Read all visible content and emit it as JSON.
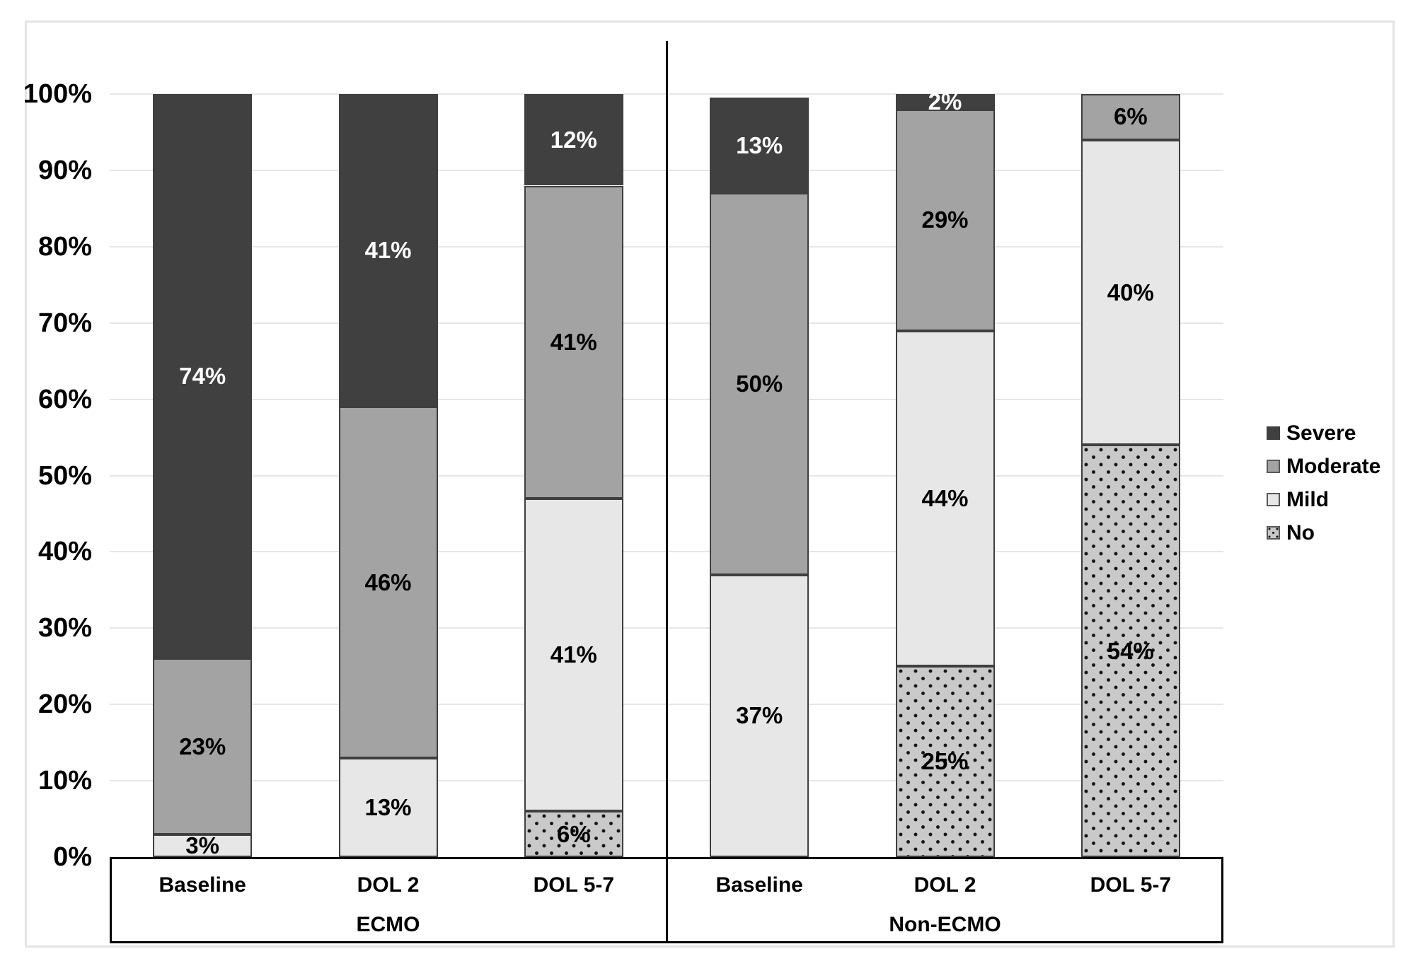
{
  "chart_data": {
    "type": "bar",
    "stacked": true,
    "stacked_kind": "percent",
    "title": "",
    "xlabel": "",
    "ylabel": "",
    "ylim": [
      0,
      100
    ],
    "grid": "horizontal",
    "legend_position": "right",
    "y_ticks": [
      "0%",
      "10%",
      "20%",
      "30%",
      "40%",
      "50%",
      "60%",
      "70%",
      "80%",
      "90%",
      "100%"
    ],
    "categories": [
      "Baseline",
      "DOL 2",
      "DOL 5-7",
      "Baseline",
      "DOL 2",
      "DOL 5-7"
    ],
    "groups": [
      {
        "label": "ECMO",
        "from": 0,
        "to": 2
      },
      {
        "label": "Non-ECMO",
        "from": 3,
        "to": 5
      }
    ],
    "series": [
      {
        "name": "Severe",
        "color": "#404040",
        "pattern": "solid",
        "label_color": "#ffffff",
        "values": [
          74,
          41,
          12,
          13,
          2,
          0
        ],
        "labels": [
          "74%",
          "41%",
          "12%",
          "13%",
          "2%",
          ""
        ]
      },
      {
        "name": "Moderate",
        "color": "#a3a3a3",
        "pattern": "solid",
        "label_color": "#000000",
        "values": [
          23,
          46,
          41,
          50,
          29,
          6
        ],
        "labels": [
          "23%",
          "46%",
          "41%",
          "50%",
          "29%",
          "6%"
        ]
      },
      {
        "name": "Mild",
        "color": "#e7e7e7",
        "pattern": "solid",
        "label_color": "#000000",
        "values": [
          3,
          13,
          41,
          37,
          44,
          40
        ],
        "labels": [
          "3%",
          "13%",
          "41%",
          "37%",
          "44%",
          "40%"
        ]
      },
      {
        "name": "No",
        "color": "#c9c9c9",
        "pattern": "dots",
        "label_color": "#000000",
        "values": [
          0,
          0,
          6,
          0,
          25,
          54
        ],
        "labels": [
          "",
          "",
          "6%",
          "",
          "25%",
          "54%"
        ]
      }
    ],
    "bar_totals_drawn": [
      100,
      100,
      100,
      99.5,
      100,
      100
    ],
    "colors": {
      "gridline": "#e6e6e6",
      "frame_border": "#e4e4e4",
      "axis_and_divider": "#000000",
      "segment_border": "#3f3f3f"
    }
  }
}
